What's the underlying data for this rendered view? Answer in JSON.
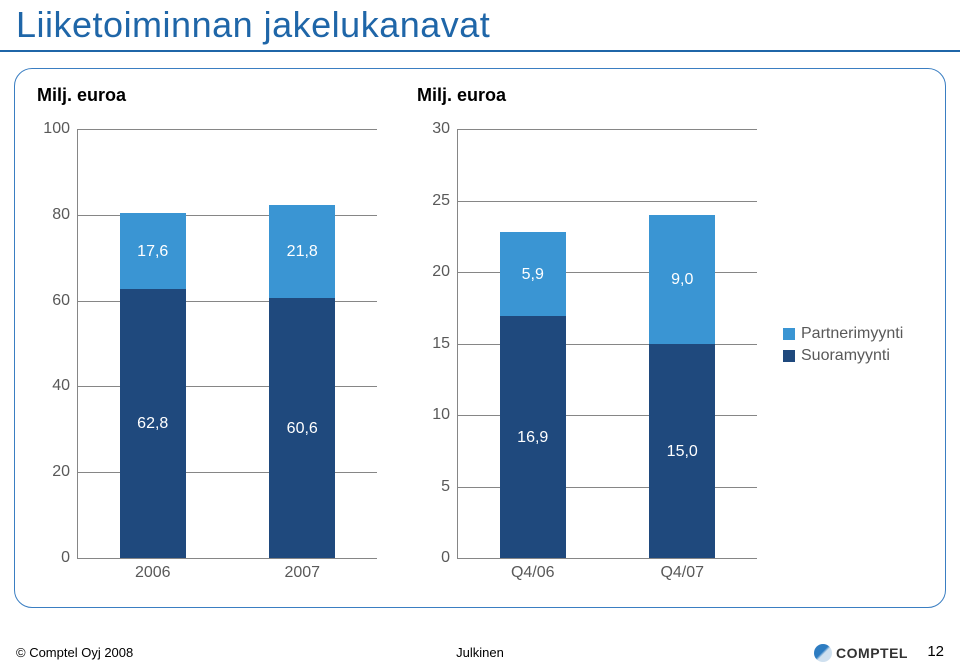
{
  "title": "Liiketoiminnan jakelukanavat",
  "panel": {
    "border_color": "#3a7ec2",
    "border_radius": 18
  },
  "colors": {
    "partner": "#3a95d3",
    "direct": "#1f497d",
    "grid": "#868686",
    "tick_text": "#595959",
    "title_text": "#1f66a8",
    "bar_label_text": "#ffffff",
    "background": "#ffffff"
  },
  "typography": {
    "title_fontsize": 36,
    "axis_label_fontsize": 18,
    "tick_fontsize": 16,
    "bar_label_fontsize": 16,
    "legend_fontsize": 16,
    "footer_fontsize": 13
  },
  "chart_left": {
    "type": "stacked-bar",
    "label": "Milj. euroa",
    "ylim": [
      0,
      100
    ],
    "ytick_step": 20,
    "yticks": [
      0,
      20,
      40,
      60,
      80,
      100
    ],
    "categories": [
      "2006",
      "2007"
    ],
    "series": [
      {
        "name": "Suoramyynti",
        "color_key": "direct",
        "values": [
          62.8,
          60.6
        ],
        "labels": [
          "62,8",
          "60,6"
        ]
      },
      {
        "name": "Partnerimyynti",
        "color_key": "partner",
        "values": [
          17.6,
          21.8
        ],
        "labels": [
          "17,6",
          "21,8"
        ]
      }
    ],
    "bar_width": 0.44
  },
  "chart_right": {
    "type": "stacked-bar",
    "label": "Milj. euroa",
    "ylim": [
      0,
      30
    ],
    "ytick_step": 5,
    "yticks": [
      0,
      5,
      10,
      15,
      20,
      25,
      30
    ],
    "categories": [
      "Q4/06",
      "Q4/07"
    ],
    "series": [
      {
        "name": "Suoramyynti",
        "color_key": "direct",
        "values": [
          16.9,
          15.0
        ],
        "labels": [
          "16,9",
          "15,0"
        ]
      },
      {
        "name": "Partnerimyynti",
        "color_key": "partner",
        "values": [
          5.9,
          9.0
        ],
        "labels": [
          "5,9",
          "9,0"
        ]
      }
    ],
    "bar_width": 0.44
  },
  "legend": {
    "items": [
      {
        "label": "Partnerimyynti",
        "color_key": "partner"
      },
      {
        "label": "Suoramyynti",
        "color_key": "direct"
      }
    ]
  },
  "footer": {
    "left": "© Comptel Oyj 2008",
    "center": "Julkinen",
    "page": "12",
    "logo_text": "COMPTEL"
  }
}
